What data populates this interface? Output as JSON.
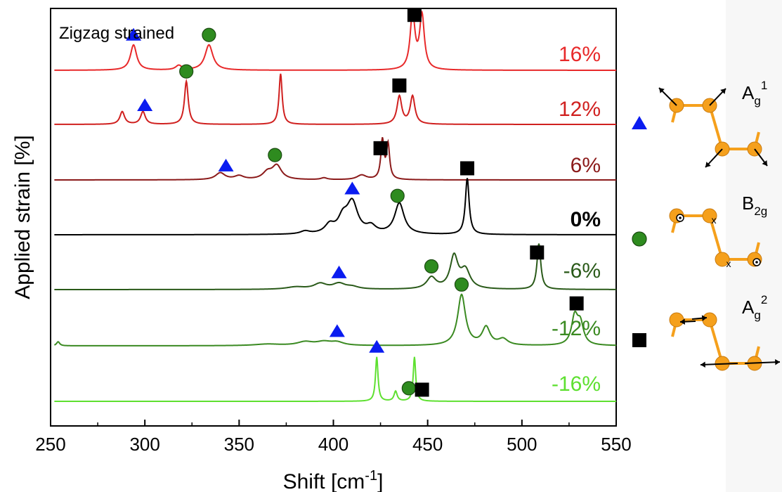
{
  "chart_data": {
    "type": "line",
    "title": "",
    "subtitle": "",
    "xlabel": "Shift [cm",
    "xlabel_sup": "-1",
    "xlabel_close": "]",
    "ylabel": "Applied strain [%]",
    "xlim": [
      250,
      550
    ],
    "xticks": [
      250,
      300,
      350,
      400,
      450,
      500,
      550
    ],
    "grid": false,
    "annotation": "Zigzag strained",
    "series": [
      {
        "name": "16%",
        "color": "#e8292a",
        "peaks": [
          [
            294,
            0.45,
            2
          ],
          [
            318,
            0.08,
            2
          ],
          [
            334,
            0.45,
            2.5
          ],
          [
            442,
            1.0,
            1.5
          ],
          [
            447,
            0.95,
            1.5
          ]
        ],
        "triangle": 294,
        "circle": 334,
        "square": 443
      },
      {
        "name": "12%",
        "color": "#d0201f",
        "peaks": [
          [
            288,
            0.25,
            1.5
          ],
          [
            299,
            0.25,
            1.5
          ],
          [
            322,
            0.85,
            1.2
          ],
          [
            372,
            1.0,
            1.0
          ],
          [
            435,
            0.55,
            1.5
          ],
          [
            442,
            0.55,
            1.5
          ]
        ],
        "triangle": 300,
        "circle": 322,
        "square": 435
      },
      {
        "name": "6%",
        "color": "#8b1a1a",
        "peaks": [
          [
            340,
            0.15,
            3
          ],
          [
            350,
            0.08,
            3
          ],
          [
            365,
            0.15,
            3
          ],
          [
            370,
            0.3,
            3
          ],
          [
            395,
            0.04,
            2
          ],
          [
            415,
            0.1,
            3
          ],
          [
            426,
            0.85,
            1.0
          ],
          [
            429,
            0.75,
            1.0
          ]
        ],
        "triangle": 343,
        "circle": 369,
        "square": 425
      },
      {
        "name": "0%",
        "color": "#000000",
        "peaks": [
          [
            385,
            0.05,
            3
          ],
          [
            398,
            0.15,
            3
          ],
          [
            405,
            0.25,
            3
          ],
          [
            410,
            0.55,
            3.5
          ],
          [
            420,
            0.12,
            3
          ],
          [
            435,
            0.55,
            3
          ],
          [
            471,
            1.0,
            1.2
          ]
        ],
        "triangle": 410,
        "circle": 434,
        "square": 471
      },
      {
        "name": "-6%",
        "color": "#2a5a19",
        "peaks": [
          [
            380,
            0.05,
            6
          ],
          [
            393,
            0.12,
            4
          ],
          [
            403,
            0.12,
            4
          ],
          [
            410,
            0.05,
            4
          ],
          [
            452,
            0.25,
            3
          ],
          [
            464,
            0.7,
            2.5
          ],
          [
            470,
            0.4,
            3
          ],
          [
            509,
            1.0,
            1.2
          ]
        ],
        "triangle": 403,
        "circle": 452,
        "square": 508
      },
      {
        "name": "-12%",
        "color": "#3a8a21",
        "peaks": [
          [
            254,
            0.08,
            1
          ],
          [
            365,
            0.03,
            8
          ],
          [
            385,
            0.07,
            5
          ],
          [
            395,
            0.07,
            5
          ],
          [
            402,
            0.06,
            4
          ],
          [
            468,
            1.0,
            2.5
          ],
          [
            481,
            0.35,
            2.5
          ],
          [
            490,
            0.12,
            3
          ],
          [
            528,
            0.55,
            2
          ],
          [
            531,
            0.4,
            2
          ]
        ],
        "triangle": 402,
        "circle": 468,
        "square": 529
      },
      {
        "name": "-16%",
        "color": "#5ee030",
        "peaks": [
          [
            423,
            0.9,
            0.8
          ],
          [
            433,
            0.2,
            1
          ],
          [
            443,
            0.9,
            0.8
          ]
        ],
        "triangle": 423,
        "circle": 440,
        "square": 447
      }
    ],
    "legend_modes": [
      {
        "marker": "triangle",
        "label_main": "A",
        "label_sub": "g",
        "label_sup": "1",
        "color": "#0a1cf0"
      },
      {
        "marker": "circle",
        "label_main": "B",
        "label_sub": "2g",
        "label_sup": "",
        "color": "#2e8b1f"
      },
      {
        "marker": "square",
        "label_main": "A",
        "label_sub": "g",
        "label_sup": "2",
        "color": "#000000"
      }
    ],
    "marker_colors": {
      "triangle": "#0a1cf0",
      "circle": "#2e8b1f",
      "square": "#000000"
    },
    "atom_color": "#f5a01c"
  }
}
